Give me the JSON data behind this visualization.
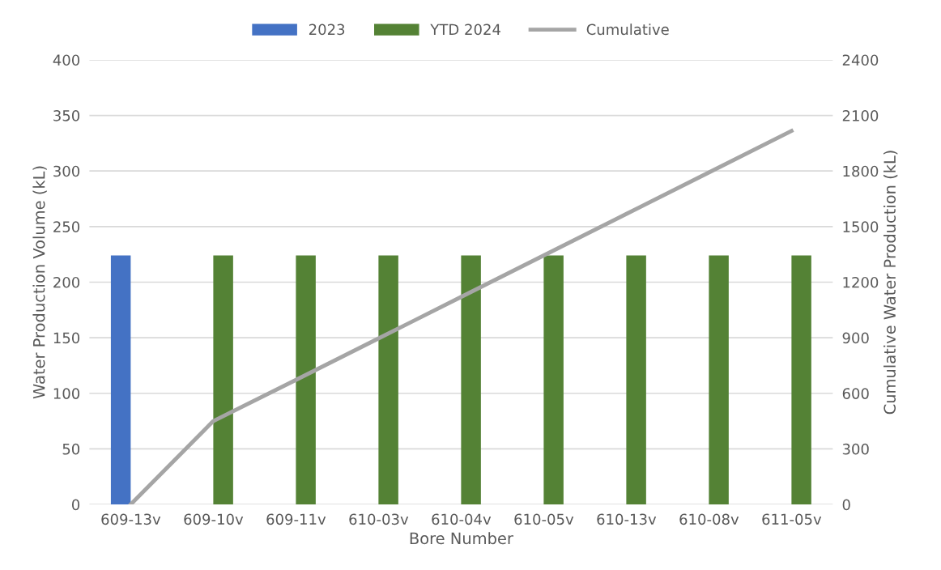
{
  "chart_data": {
    "type": "bar",
    "xlabel": "Bore Number",
    "ylabel": "Water Production Volume (kL)",
    "y2label": "Cumulative Water Production (kL)",
    "categories": [
      "609-13v",
      "609-10v",
      "609-11v",
      "610-03v",
      "610-04v",
      "610-05v",
      "610-13v",
      "610-08v",
      "611-05v"
    ],
    "series": [
      {
        "name": "2023",
        "color": "#4472c4",
        "values": [
          224,
          null,
          null,
          null,
          null,
          null,
          null,
          null,
          null
        ]
      },
      {
        "name": "YTD 2024",
        "color": "#548235",
        "values": [
          null,
          224,
          224,
          224,
          224,
          224,
          224,
          224,
          224
        ]
      },
      {
        "name": "Cumulative",
        "type": "line",
        "axis": "y2",
        "color": "#a5a5a5",
        "values": [
          0,
          450,
          672,
          896,
          1120,
          1344,
          1568,
          1792,
          2016
        ]
      }
    ],
    "ylim": [
      0,
      400
    ],
    "yticks": [
      0,
      50,
      100,
      150,
      200,
      250,
      300,
      350,
      400
    ],
    "y2lim": [
      0,
      2400
    ],
    "y2ticks": [
      0,
      300,
      600,
      900,
      1200,
      1500,
      1800,
      2100,
      2400
    ],
    "grid": "y",
    "legend": "top",
    "marker": "none",
    "line_style": "solid"
  }
}
